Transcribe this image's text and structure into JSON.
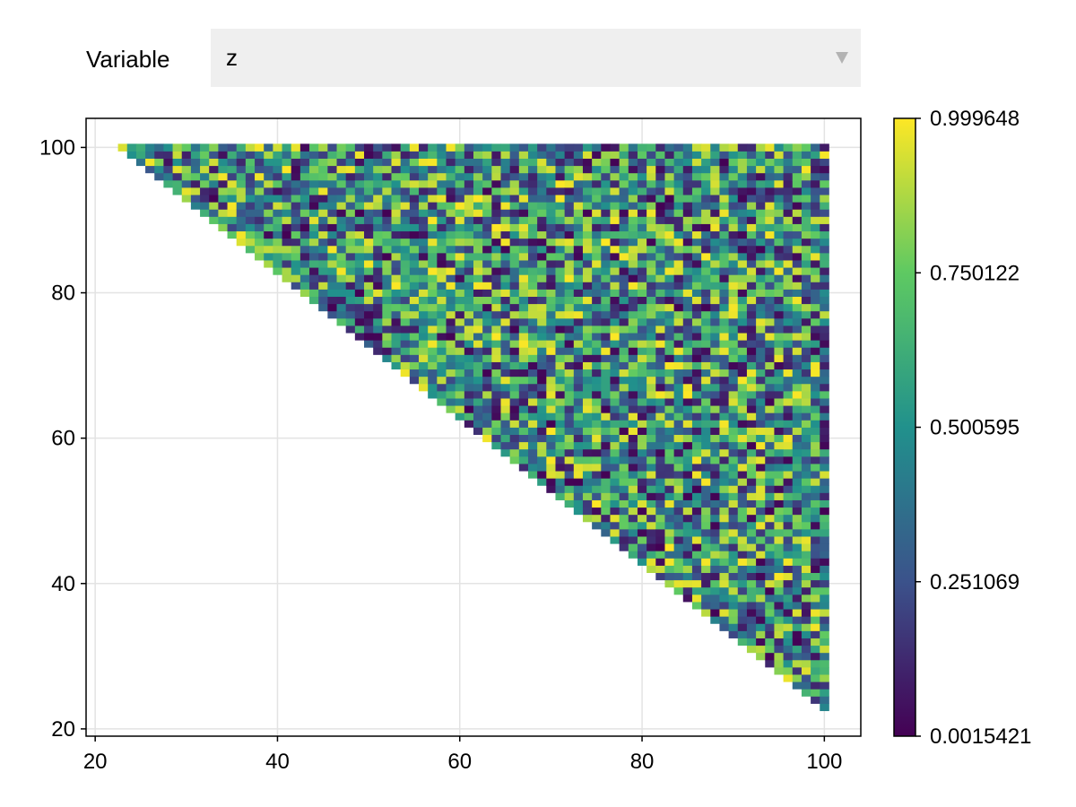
{
  "menu": {
    "label": "Variable",
    "selected": "z",
    "icon": "chevron-down-icon"
  },
  "chart_data": {
    "type": "heatmap",
    "title": "",
    "xlabel": "",
    "ylabel": "",
    "xlim": [
      19,
      104
    ],
    "ylim": [
      19,
      104
    ],
    "x_ticks": [
      20,
      40,
      60,
      80,
      100
    ],
    "y_ticks": [
      20,
      40,
      60,
      80,
      100
    ],
    "grid": true,
    "cell_range_x": [
      23,
      100
    ],
    "cell_range_y": [
      23,
      100
    ],
    "filled_region": "upper-right triangle where x + y >= 123 (x from 23 to 100, y from 23 to 100)",
    "values_note": "random values uniformly distributed between 0.0015421 and 0.999648",
    "colormap": "viridis",
    "colormap_stops": [
      "#440154",
      "#3b528b",
      "#21918c",
      "#5ec962",
      "#fde725"
    ],
    "colorbar": {
      "min": 0.0015421,
      "max": 0.999648,
      "ticks": [
        "0.0015421",
        "0.251069",
        "0.500595",
        "0.750122",
        "0.999648"
      ],
      "location": "right"
    }
  }
}
